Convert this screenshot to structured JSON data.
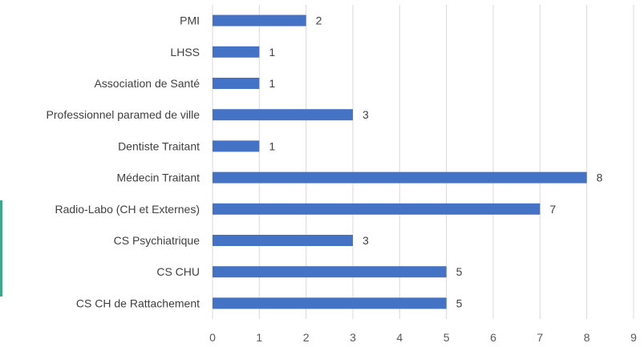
{
  "chart_data": {
    "type": "bar",
    "orientation": "horizontal",
    "categories": [
      "PMI",
      "LHSS",
      "Association de Santé",
      "Professionnel paramed de ville",
      "Dentiste Traitant",
      "Médecin Traitant",
      "Radio-Labo (CH et Externes)",
      "CS Psychiatrique",
      "CS CHU",
      "CS CH de Rattachement"
    ],
    "values": [
      2,
      1,
      1,
      3,
      1,
      8,
      7,
      3,
      5,
      5
    ],
    "xlim": [
      0,
      9
    ],
    "xticks": [
      0,
      1,
      2,
      3,
      4,
      5,
      6,
      7,
      8,
      9
    ],
    "grid": true,
    "bar_color": "#4472c4",
    "accent_color": "#3aa889",
    "data_labels": true,
    "title": "",
    "xlabel": "",
    "ylabel": ""
  }
}
